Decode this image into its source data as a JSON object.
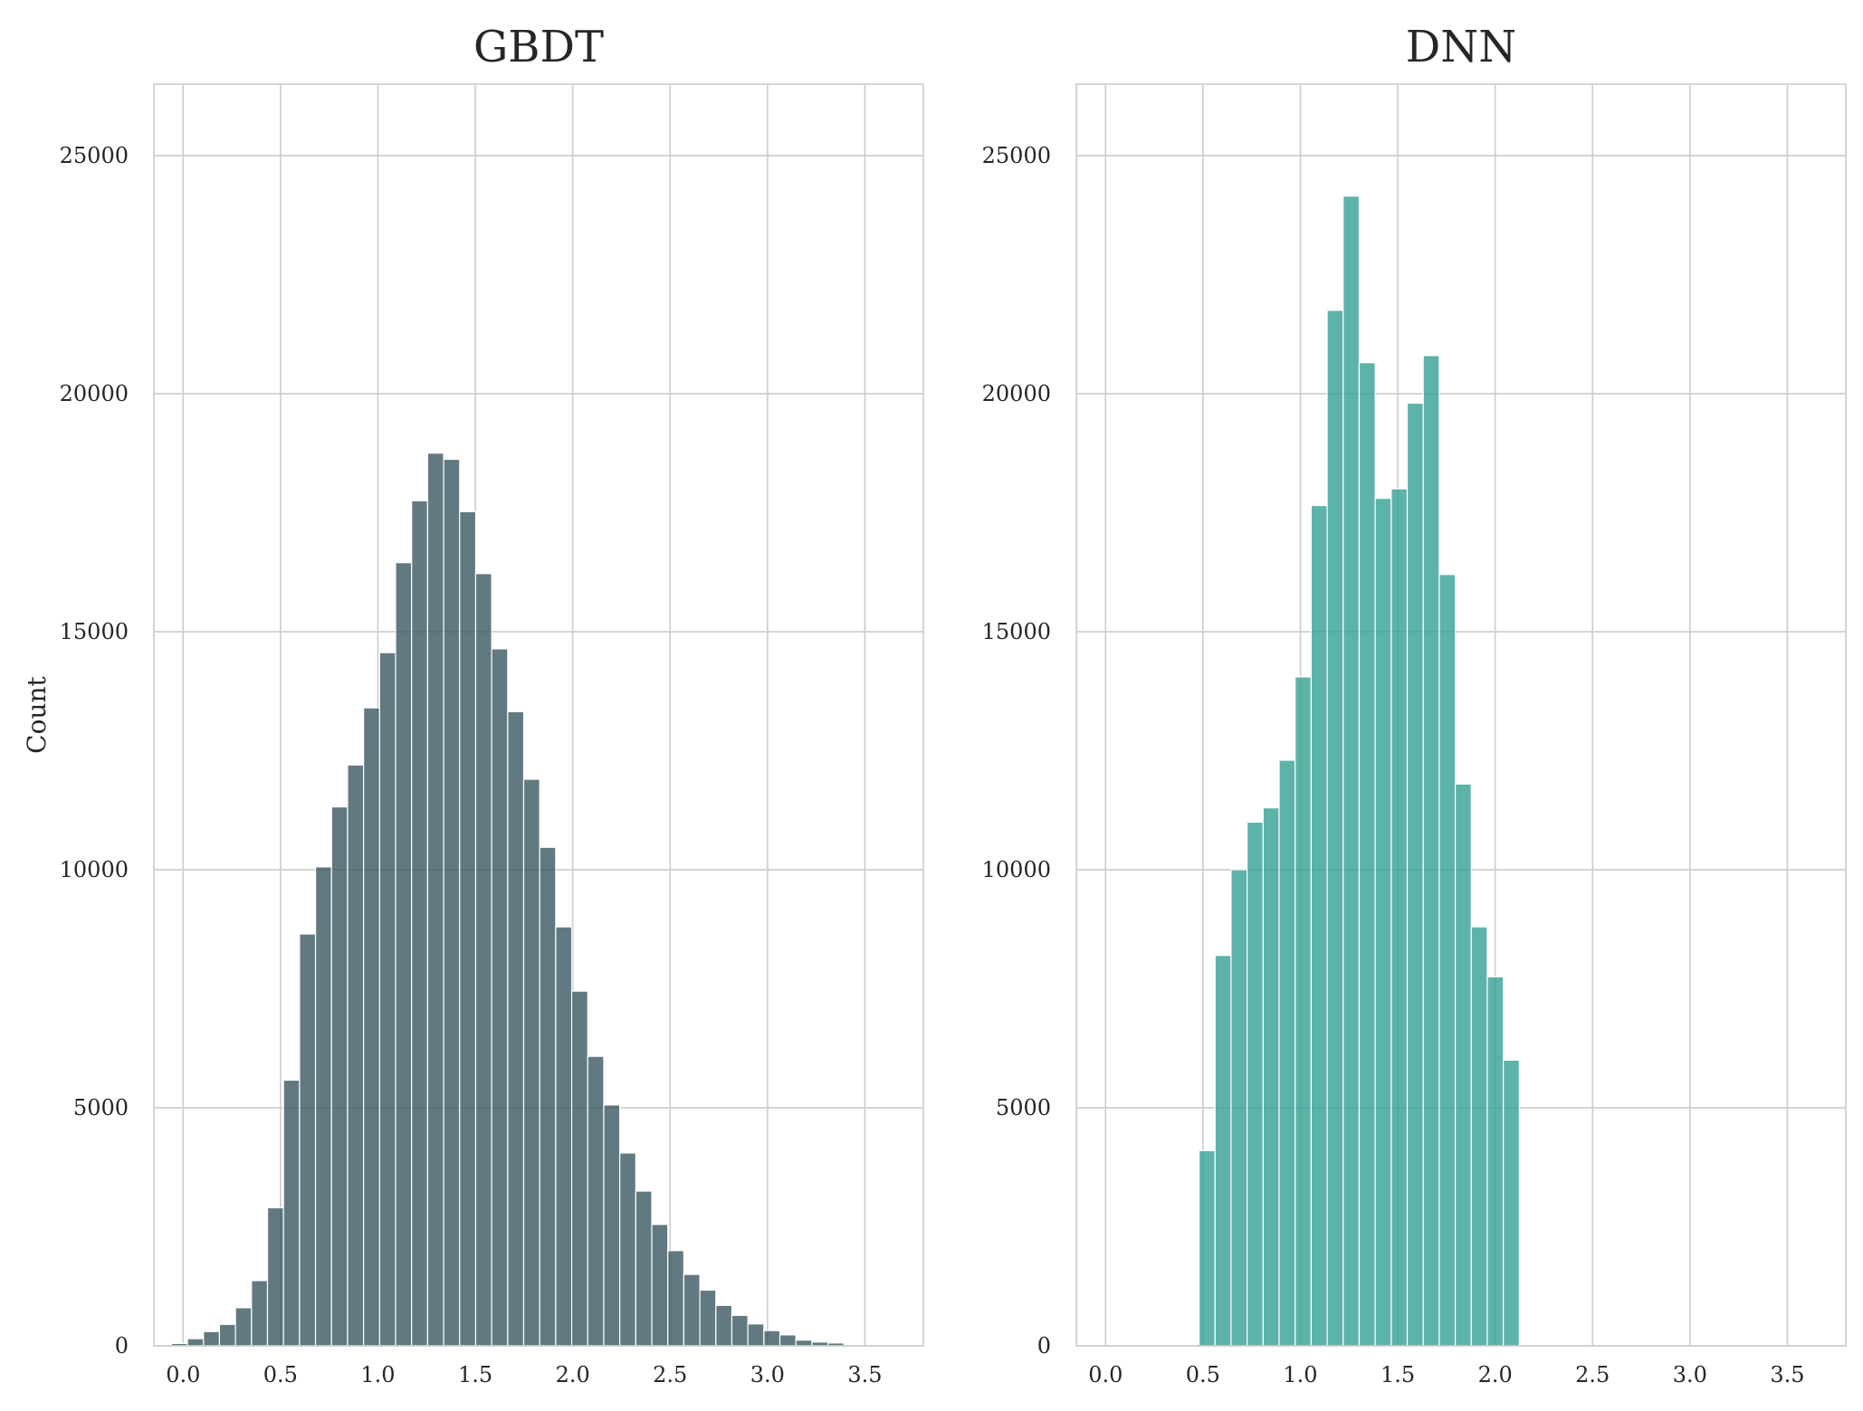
{
  "chart_data": [
    {
      "type": "bar",
      "title": "GBDT",
      "xlabel": "",
      "ylabel": "Count",
      "xlim": [
        -0.15,
        3.8
      ],
      "ylim": [
        0,
        26500
      ],
      "xticks": [
        0.0,
        0.5,
        1.0,
        1.5,
        2.0,
        2.5,
        3.0,
        3.5
      ],
      "xtick_labels": [
        "0.0",
        "0.5",
        "1.0",
        "1.5",
        "2.0",
        "2.5",
        "3.0",
        "3.5"
      ],
      "yticks": [
        0,
        5000,
        10000,
        15000,
        20000,
        25000
      ],
      "ytick_labels": [
        "0",
        "5000",
        "10000",
        "15000",
        "20000",
        "25000"
      ],
      "grid": true,
      "color": "#36535e",
      "bin_width": 0.0822,
      "bin_edges_start": -0.06,
      "values": [
        50,
        150,
        300,
        450,
        800,
        1370,
        2900,
        5580,
        8650,
        10060,
        11320,
        12200,
        13400,
        14560,
        16450,
        17750,
        18750,
        18620,
        17520,
        16220,
        14640,
        13320,
        11900,
        10470,
        8800,
        7450,
        6080,
        5060,
        4050,
        3250,
        2550,
        2000,
        1500,
        1170,
        850,
        640,
        460,
        320,
        230,
        120,
        80,
        60
      ]
    },
    {
      "type": "bar",
      "title": "DNN",
      "xlabel": "",
      "ylabel": "",
      "xlim": [
        -0.15,
        3.8
      ],
      "ylim": [
        0,
        26500
      ],
      "xticks": [
        0.0,
        0.5,
        1.0,
        1.5,
        2.0,
        2.5,
        3.0,
        3.5
      ],
      "xtick_labels": [
        "0.0",
        "0.5",
        "1.0",
        "1.5",
        "2.0",
        "2.5",
        "3.0",
        "3.5"
      ],
      "yticks": [
        0,
        5000,
        10000,
        15000,
        20000,
        25000
      ],
      "ytick_labels": [
        "0",
        "5000",
        "10000",
        "15000",
        "20000",
        "25000"
      ],
      "grid": true,
      "color": "#2f9e8f",
      "bin_width": 0.0822,
      "bin_edges_start": 0.48,
      "values": [
        4100,
        8200,
        10000,
        11000,
        11300,
        12300,
        14050,
        17650,
        21750,
        24150,
        20650,
        17800,
        18000,
        19800,
        20800,
        16200,
        11800,
        8800,
        7750,
        6000
      ]
    }
  ]
}
